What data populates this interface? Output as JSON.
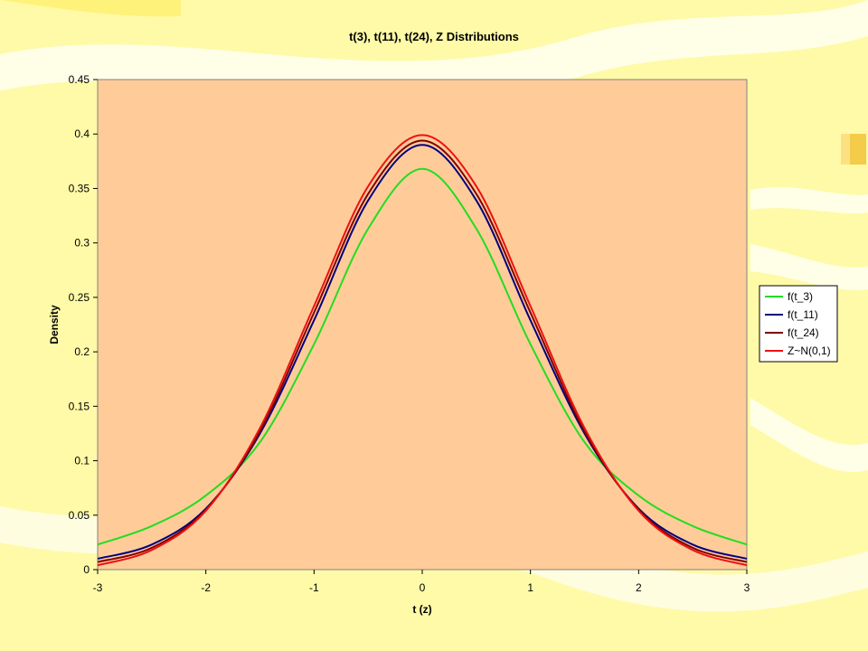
{
  "chart_data": {
    "type": "line",
    "title": "t(3), t(11), t(24), Z Distributions",
    "xlabel": "t (z)",
    "ylabel": "Density",
    "xlim": [
      -3,
      3
    ],
    "ylim": [
      0,
      0.45
    ],
    "xticks": [
      "-3",
      "-2",
      "-1",
      "0",
      "1",
      "2",
      "3"
    ],
    "yticks": [
      "0",
      "0.05",
      "0.1",
      "0.15",
      "0.2",
      "0.25",
      "0.3",
      "0.35",
      "0.4",
      "0.45"
    ],
    "grid": false,
    "legend_position": "right",
    "x": [
      -3,
      -2.5,
      -2,
      -1.5,
      -1,
      -0.5,
      0,
      0.5,
      1,
      1.5,
      2,
      2.5,
      3
    ],
    "series": [
      {
        "name": "f(t_3)",
        "color": "#22dd22",
        "values": [
          0.023,
          0.04,
          0.068,
          0.117,
          0.207,
          0.313,
          0.368,
          0.313,
          0.207,
          0.117,
          0.068,
          0.04,
          0.023
        ]
      },
      {
        "name": "f(t_11)",
        "color": "#000080",
        "values": [
          0.01,
          0.023,
          0.056,
          0.125,
          0.229,
          0.339,
          0.39,
          0.339,
          0.229,
          0.125,
          0.056,
          0.023,
          0.01
        ]
      },
      {
        "name": "f(t_24)",
        "color": "#800000",
        "values": [
          0.007,
          0.02,
          0.055,
          0.127,
          0.236,
          0.345,
          0.394,
          0.345,
          0.236,
          0.127,
          0.055,
          0.02,
          0.007
        ]
      },
      {
        "name": "Z~N(0,1)",
        "color": "#ee1111",
        "values": [
          0.004,
          0.018,
          0.054,
          0.13,
          0.242,
          0.352,
          0.399,
          0.352,
          0.242,
          0.13,
          0.054,
          0.018,
          0.004
        ]
      }
    ]
  },
  "colors": {
    "plot_background": "#ffcc99",
    "slide_background": "#fffaa8"
  }
}
